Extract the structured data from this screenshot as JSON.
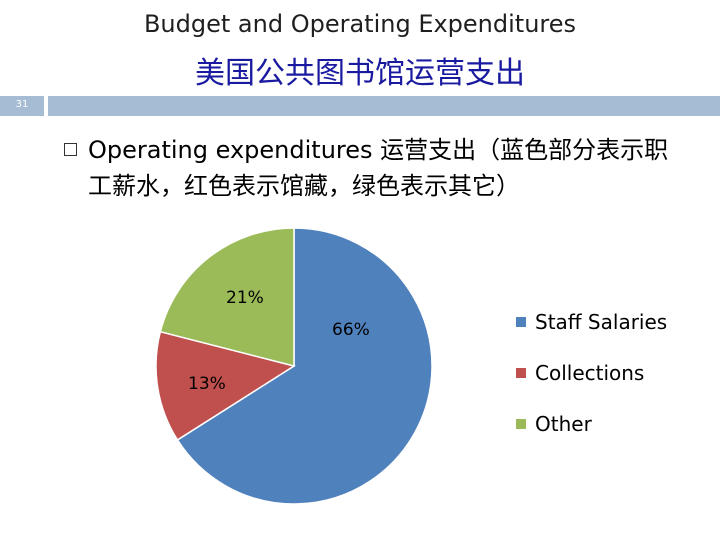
{
  "header": {
    "title_en": "Budget and Operating Expenditures",
    "title_cn": "美国公共图书馆运营支出"
  },
  "slide": {
    "number": "31"
  },
  "bullet": {
    "text": "Operating expenditures 运营支出（蓝色部分表示职工薪水，红色表示馆藏，绿色表示其它）"
  },
  "chart_data": {
    "type": "pie",
    "categories": [
      "Staff Salaries",
      "Collections",
      "Other"
    ],
    "values": [
      66,
      13,
      21
    ],
    "data_labels": [
      "66%",
      "13%",
      "21%"
    ],
    "colors": [
      "#4f81bd",
      "#c0504d",
      "#9bbb59"
    ],
    "legend_position": "right"
  }
}
